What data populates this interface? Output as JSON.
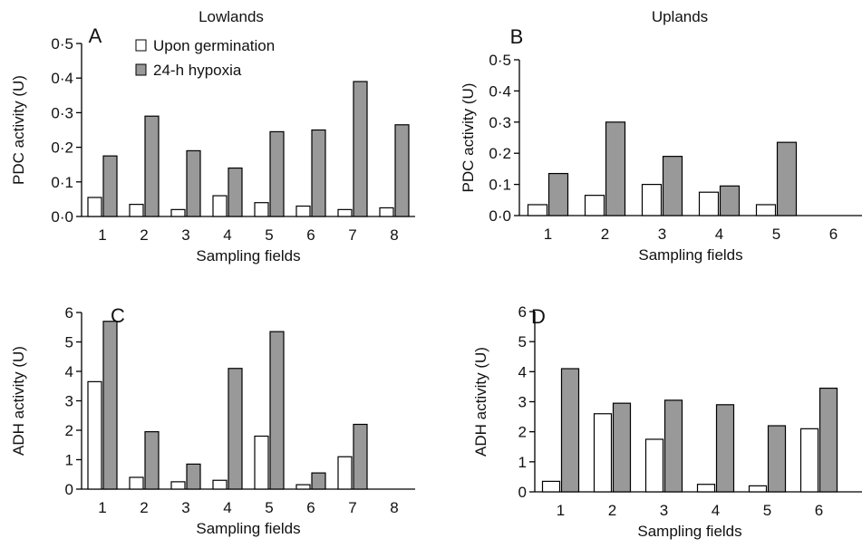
{
  "group_titles": [
    "Lowlands",
    "Uplands"
  ],
  "legend": {
    "entries": [
      {
        "label": "Upon germination",
        "color": "#ffffff"
      },
      {
        "label": "24-h hypoxia",
        "color": "#999999"
      }
    ]
  },
  "chart_data": [
    {
      "type": "bar",
      "panel": "A",
      "title": "Lowlands",
      "xlabel": "Sampling fields",
      "ylabel": "PDC activity (U)",
      "ylim": [
        0,
        0.5
      ],
      "yticks": [
        "0·0",
        "0·1",
        "0·2",
        "0·3",
        "0·4",
        "0·5"
      ],
      "categories": [
        "1",
        "2",
        "3",
        "4",
        "5",
        "6",
        "7",
        "8"
      ],
      "series": [
        {
          "name": "Upon germination",
          "values": [
            0.055,
            0.035,
            0.02,
            0.06,
            0.04,
            0.03,
            0.02,
            0.025
          ]
        },
        {
          "name": "24-h hypoxia",
          "values": [
            0.175,
            0.29,
            0.19,
            0.14,
            0.245,
            0.25,
            0.39,
            0.265
          ]
        }
      ]
    },
    {
      "type": "bar",
      "panel": "B",
      "title": "Uplands",
      "xlabel": "Sampling fields",
      "ylabel": "PDC activity (U)",
      "ylim": [
        0,
        0.5
      ],
      "yticks": [
        "0·0",
        "0·1",
        "0·2",
        "0·3",
        "0·4",
        "0·5"
      ],
      "categories": [
        "1",
        "2",
        "3",
        "4",
        "5",
        "6"
      ],
      "series": [
        {
          "name": "Upon germination",
          "values": [
            0.035,
            0.065,
            0.1,
            0.075,
            0.035,
            0
          ]
        },
        {
          "name": "24-h hypoxia",
          "values": [
            0.135,
            0.3,
            0.19,
            0.095,
            0.235,
            0
          ]
        }
      ]
    },
    {
      "type": "bar",
      "panel": "C",
      "xlabel": "Sampling fields",
      "ylabel": "ADH activity (U)",
      "ylim": [
        0,
        6
      ],
      "yticks": [
        "0",
        "1",
        "2",
        "3",
        "4",
        "5",
        "6"
      ],
      "categories": [
        "1",
        "2",
        "3",
        "4",
        "5",
        "6",
        "7",
        "8"
      ],
      "series": [
        {
          "name": "Upon germination",
          "values": [
            3.65,
            0.4,
            0.25,
            0.3,
            1.8,
            0.15,
            1.1,
            0
          ]
        },
        {
          "name": "24-h hypoxia",
          "values": [
            5.7,
            1.95,
            0.85,
            4.1,
            5.35,
            0.55,
            2.2,
            0
          ]
        }
      ]
    },
    {
      "type": "bar",
      "panel": "D",
      "xlabel": "Sampling fields",
      "ylabel": "ADH activity (U)",
      "ylim": [
        0,
        6
      ],
      "yticks": [
        "0",
        "1",
        "2",
        "3",
        "4",
        "5",
        "6"
      ],
      "categories": [
        "1",
        "2",
        "3",
        "4",
        "5",
        "6"
      ],
      "series": [
        {
          "name": "Upon germination",
          "values": [
            0.35,
            2.6,
            1.75,
            0.25,
            0.2,
            2.1
          ]
        },
        {
          "name": "24-h hypoxia",
          "values": [
            4.1,
            2.95,
            3.05,
            2.9,
            2.2,
            3.45
          ]
        }
      ]
    }
  ]
}
